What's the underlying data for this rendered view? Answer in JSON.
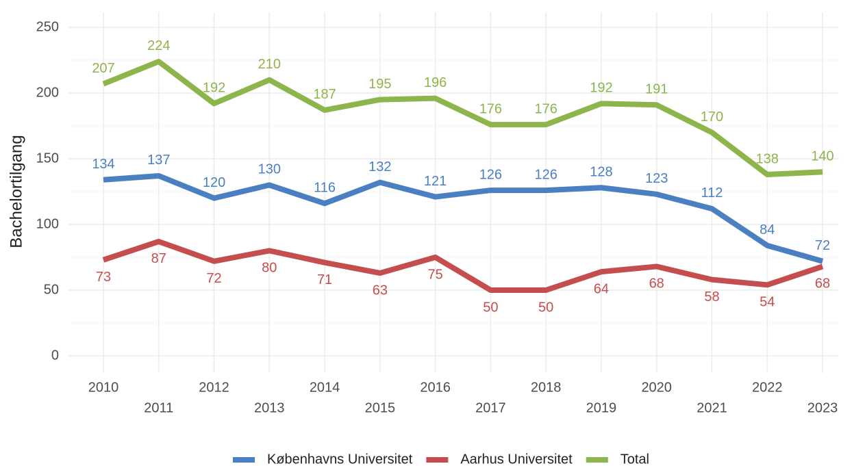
{
  "chart_data": {
    "type": "line",
    "y_label": "Bachelortilgang",
    "x": [
      2010,
      2011,
      2012,
      2013,
      2014,
      2015,
      2016,
      2017,
      2018,
      2019,
      2020,
      2021,
      2022,
      2023
    ],
    "series": [
      {
        "name": "Københavns Universitet",
        "color": "#4a7fc1",
        "label_side": "above",
        "values": [
          134,
          137,
          120,
          130,
          116,
          132,
          121,
          126,
          126,
          128,
          123,
          112,
          84,
          72
        ]
      },
      {
        "name": "Aarhus Universitet",
        "color": "#c44e4e",
        "label_side": "below",
        "values": [
          73,
          87,
          72,
          80,
          71,
          63,
          75,
          50,
          50,
          64,
          68,
          58,
          54,
          68
        ]
      },
      {
        "name": "Total",
        "color": "#8db54b",
        "label_side": "above",
        "values": [
          207,
          224,
          192,
          210,
          187,
          195,
          196,
          176,
          176,
          192,
          191,
          170,
          138,
          140
        ]
      }
    ],
    "ylim": [
      0,
      250
    ],
    "yticks": [
      0,
      50,
      100,
      150,
      200,
      250
    ],
    "grid": true,
    "legend": "bottom"
  }
}
